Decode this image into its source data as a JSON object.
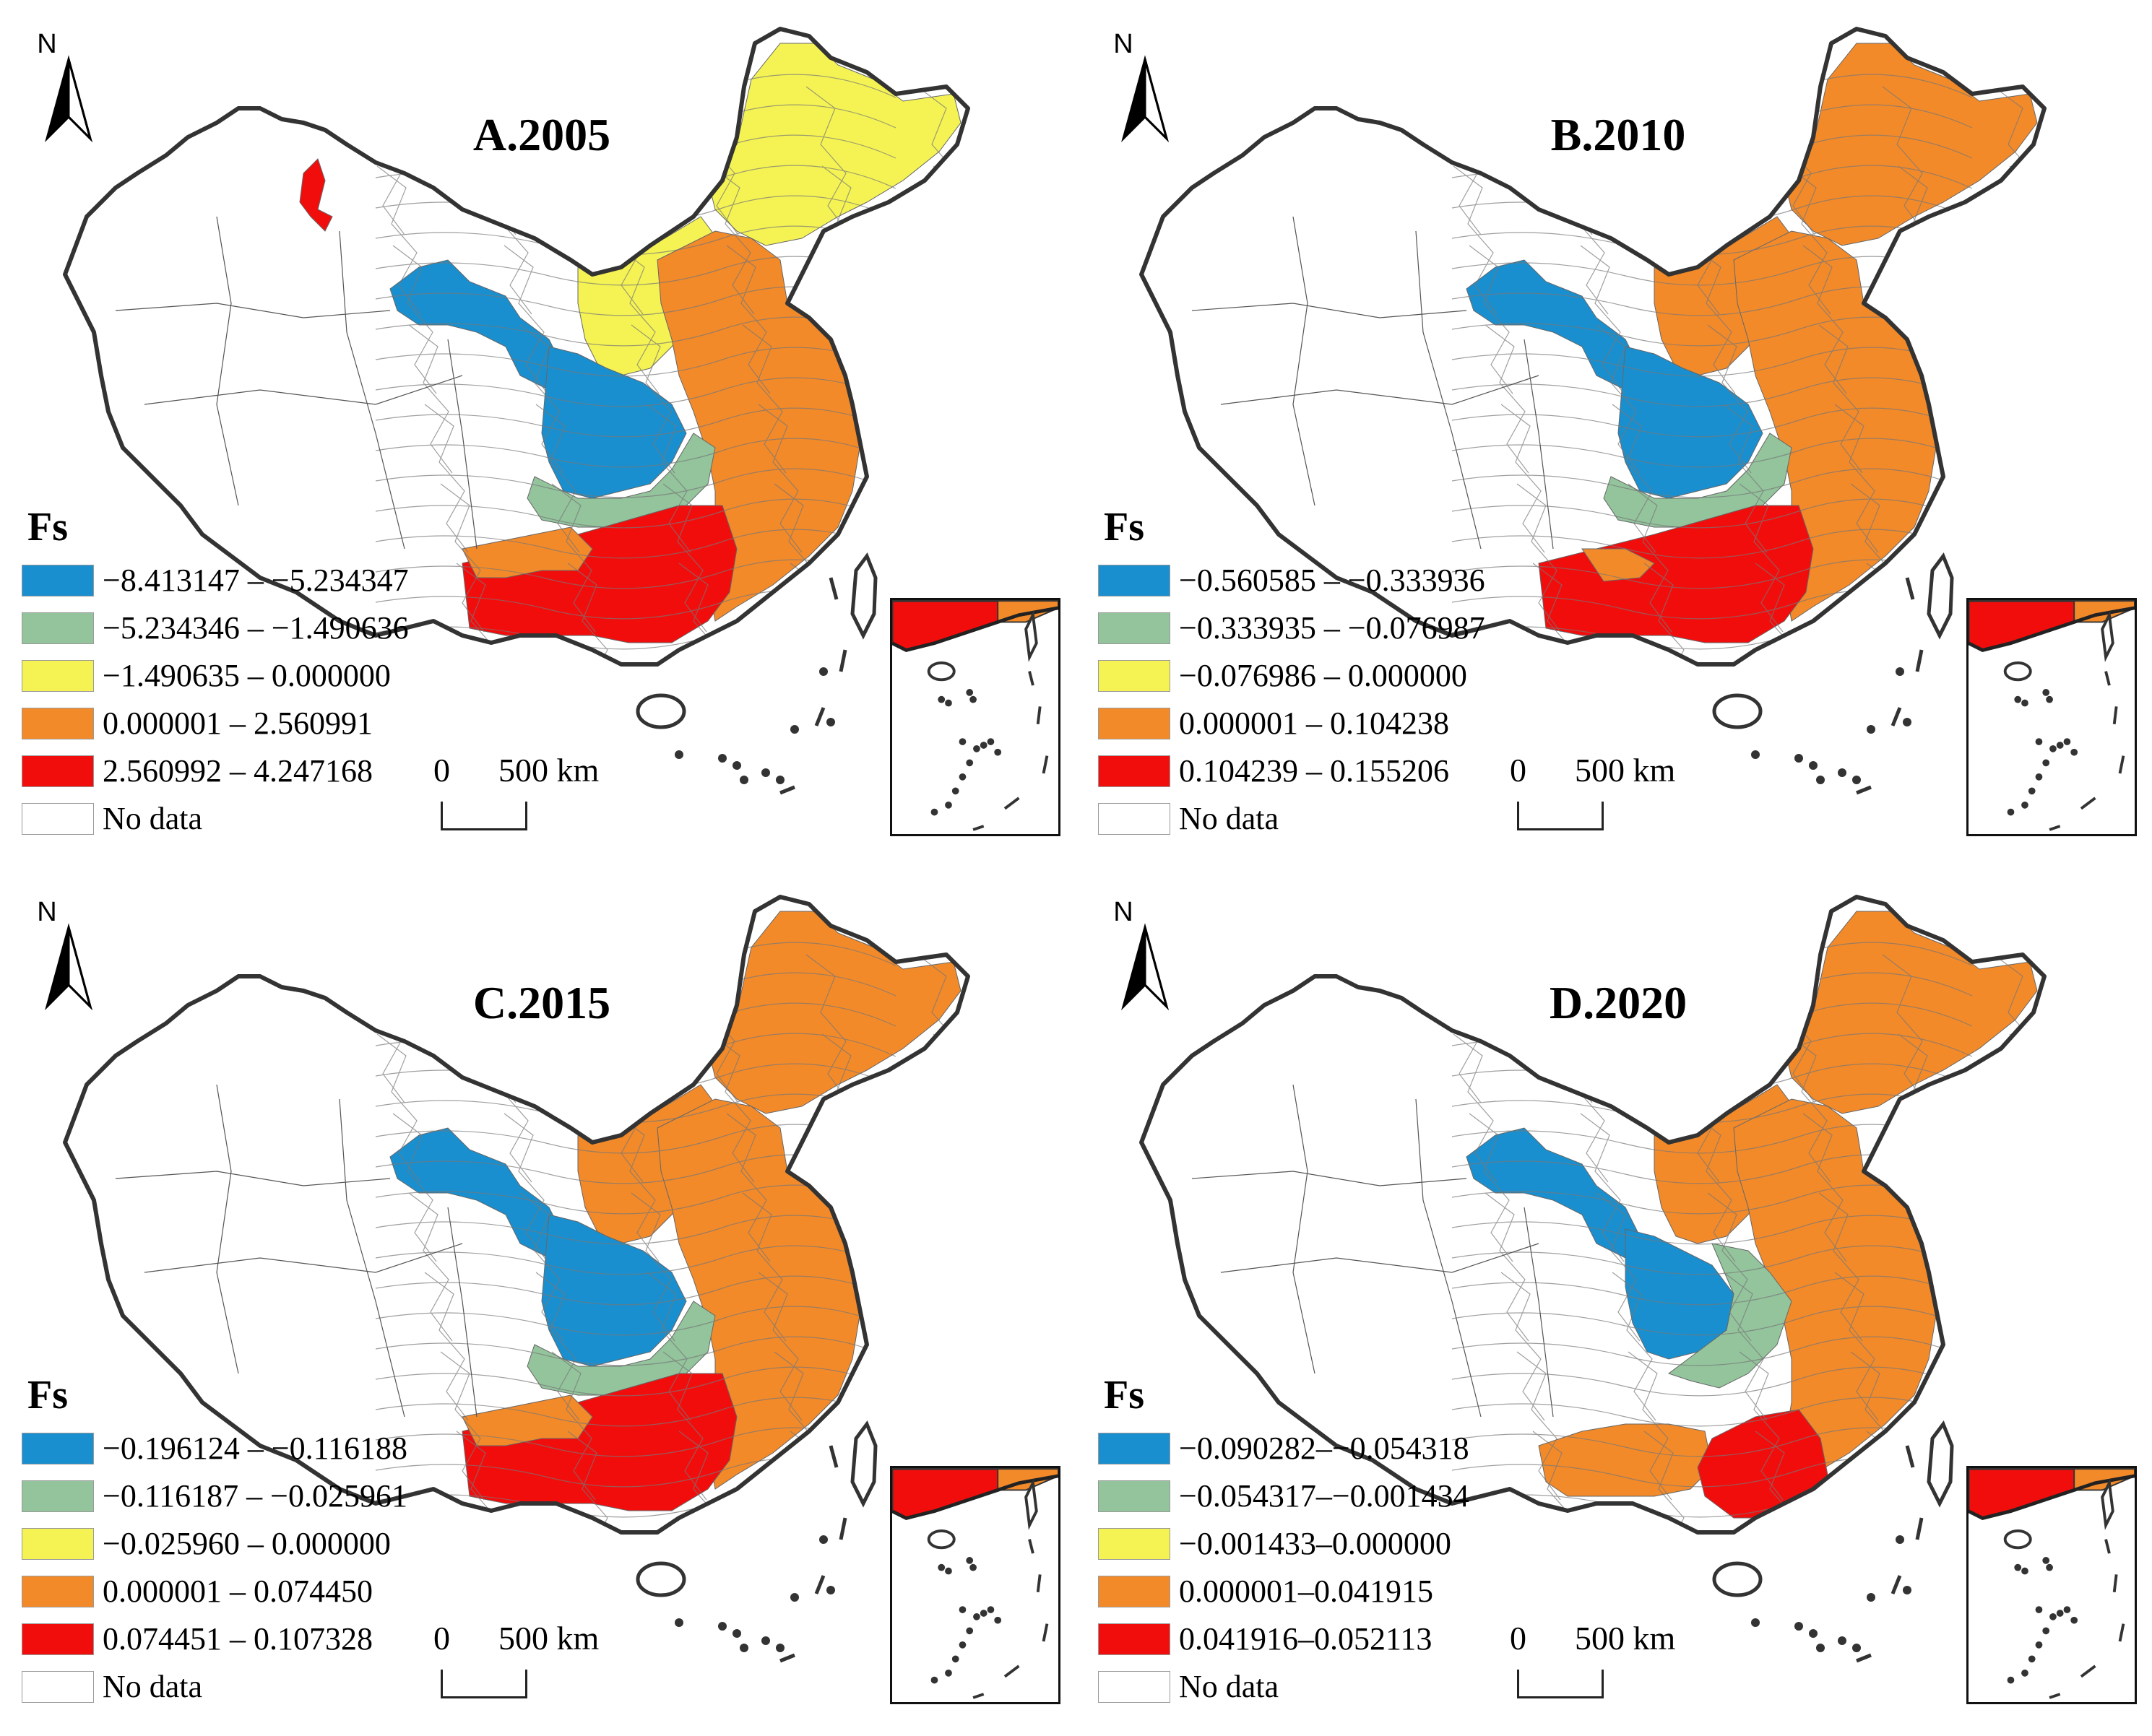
{
  "common": {
    "north_label": "N",
    "legend_title": "Fs",
    "scale_zero": "0",
    "scale_label": "500 km",
    "colors": [
      "#1a8fcf",
      "#93c49c",
      "#f5f354",
      "#f28a2a",
      "#f20d0d",
      "#ffffff"
    ],
    "icons": [
      "north-arrow-icon"
    ]
  },
  "panels": [
    {
      "title": "A.2005",
      "classes": [
        "−8.413147 – −5.234347",
        "−5.234346 – −1.490636",
        "−1.490635 – 0.000000",
        "0.000001 – 2.560991",
        "2.560992 – 4.247168",
        "No data"
      ]
    },
    {
      "title": "B.2010",
      "classes": [
        "−0.560585 – −0.333936",
        "−0.333935 – −0.076987",
        "−0.076986 – 0.000000",
        "0.000001 – 0.104238",
        "0.104239 – 0.155206",
        "No data"
      ]
    },
    {
      "title": "C.2015",
      "classes": [
        "−0.196124 – −0.116188",
        "−0.116187 – −0.025961",
        "−0.025960 – 0.000000",
        "0.000001 – 0.074450",
        "0.074451 – 0.107328",
        "No data"
      ]
    },
    {
      "title": "D.2020",
      "classes": [
        "−0.090282–−0.054318",
        "−0.054317–−0.001434",
        "−0.001433–0.000000",
        "0.000001–0.041915",
        "0.041916–0.052113",
        "No data"
      ]
    }
  ]
}
